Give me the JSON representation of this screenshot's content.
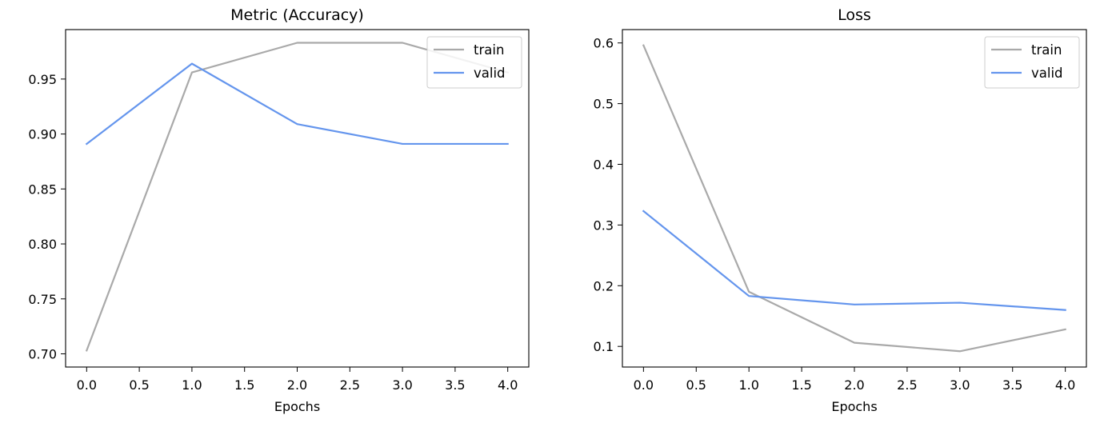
{
  "chart_data": [
    {
      "type": "line",
      "title": "Metric (Accuracy)",
      "xlabel": "Epochs",
      "ylabel": "",
      "x": [
        0,
        1,
        2,
        3,
        4
      ],
      "xlim": [
        -0.2,
        4.2
      ],
      "ylim": [
        0.688,
        0.995
      ],
      "xticks": [
        0,
        0.5,
        1,
        1.5,
        2,
        2.5,
        3,
        3.5,
        4
      ],
      "xtick_labels": [
        "0.0",
        "0.5",
        "1.0",
        "1.5",
        "2.0",
        "2.5",
        "3.0",
        "3.5",
        "4.0"
      ],
      "yticks": [
        0.7,
        0.75,
        0.8,
        0.85,
        0.9,
        0.95
      ],
      "ytick_labels": [
        "0.70",
        "0.75",
        "0.80",
        "0.85",
        "0.90",
        "0.95"
      ],
      "grid": false,
      "legend_position": "top-right",
      "series": [
        {
          "name": "train",
          "color": "#a9a9a9",
          "values": [
            0.703,
            0.956,
            0.983,
            0.983,
            0.956
          ]
        },
        {
          "name": "valid",
          "color": "#6495ed",
          "values": [
            0.891,
            0.964,
            0.909,
            0.891,
            0.891
          ]
        }
      ]
    },
    {
      "type": "line",
      "title": "Loss",
      "xlabel": "Epochs",
      "ylabel": "",
      "x": [
        0,
        1,
        2,
        3,
        4
      ],
      "xlim": [
        -0.2,
        4.2
      ],
      "ylim": [
        0.066,
        0.622
      ],
      "xticks": [
        0,
        0.5,
        1,
        1.5,
        2,
        2.5,
        3,
        3.5,
        4
      ],
      "xtick_labels": [
        "0.0",
        "0.5",
        "1.0",
        "1.5",
        "2.0",
        "2.5",
        "3.0",
        "3.5",
        "4.0"
      ],
      "yticks": [
        0.1,
        0.2,
        0.3,
        0.4,
        0.5,
        0.6
      ],
      "ytick_labels": [
        "0.1",
        "0.2",
        "0.3",
        "0.4",
        "0.5",
        "0.6"
      ],
      "grid": false,
      "legend_position": "top-right",
      "series": [
        {
          "name": "train",
          "color": "#a9a9a9",
          "values": [
            0.596,
            0.19,
            0.106,
            0.092,
            0.128
          ]
        },
        {
          "name": "valid",
          "color": "#6495ed",
          "values": [
            0.323,
            0.183,
            0.169,
            0.172,
            0.16
          ]
        }
      ]
    }
  ]
}
